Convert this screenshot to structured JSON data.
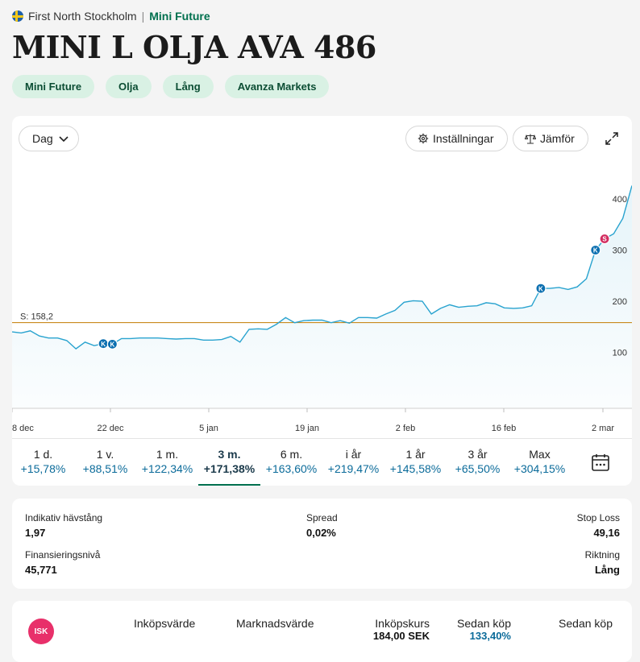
{
  "breadcrumb": {
    "market": "First North Stockholm",
    "separator": "|",
    "type": "Mini Future"
  },
  "title": "MINI L OLJA AVA 486",
  "tags": [
    "Mini Future",
    "Olja",
    "Lång",
    "Avanza Markets"
  ],
  "toolbar": {
    "range_select": "Dag",
    "settings": "Inställningar",
    "compare": "Jämför"
  },
  "icons": {
    "range": "chevron-down-icon",
    "settings": "gear-icon",
    "compare": "scale-icon",
    "expand": "expand-icon",
    "calendar": "calendar-icon",
    "isk": "isk-badge"
  },
  "colors": {
    "accent": "#00704e",
    "line": "#29a3cf",
    "stop_line": "#c98a1e",
    "marker_buy": "#0b6fb0",
    "marker_sell": "#d22c5f",
    "positive": "#0b6b9a"
  },
  "chart_data": {
    "type": "line",
    "x_ticks": [
      "8 dec",
      "22 dec",
      "5 jan",
      "19 jan",
      "2 feb",
      "16 feb",
      "2 mar"
    ],
    "y_ticks": [
      100,
      200,
      300,
      400
    ],
    "stop_label": "S: 158,2",
    "stop_value": 158.2,
    "markers": [
      {
        "label": "K",
        "kind": "buy",
        "x_index": 10
      },
      {
        "label": "K",
        "kind": "buy",
        "x_index": 11
      },
      {
        "label": "K",
        "kind": "buy",
        "x_index": 58
      },
      {
        "label": "K",
        "kind": "buy",
        "x_index": 64
      },
      {
        "label": "S",
        "kind": "sell",
        "x_index": 65
      }
    ],
    "series": [
      {
        "values": [
          140,
          138,
          142,
          132,
          128,
          128,
          123,
          107,
          120,
          113,
          117,
          116,
          127,
          127,
          128,
          128,
          128,
          127,
          126,
          127,
          127,
          124,
          124,
          125,
          131,
          120,
          145,
          146,
          145,
          155,
          168,
          158,
          162,
          163,
          163,
          158,
          162,
          157,
          168,
          168,
          167,
          175,
          182,
          198,
          201,
          200,
          175,
          186,
          193,
          188,
          190,
          191,
          197,
          195,
          187,
          186,
          187,
          191,
          225,
          225,
          227,
          223,
          228,
          244,
          300,
          322,
          332,
          362,
          426
        ]
      }
    ]
  },
  "periods": [
    {
      "label": "1 d.",
      "value": "+15,78%"
    },
    {
      "label": "1 v.",
      "value": "+88,51%"
    },
    {
      "label": "1 m.",
      "value": "+122,34%"
    },
    {
      "label": "3 m.",
      "value": "+171,38%",
      "active": true
    },
    {
      "label": "6 m.",
      "value": "+163,60%"
    },
    {
      "label": "i år",
      "value": "+219,47%"
    },
    {
      "label": "1 år",
      "value": "+145,58%"
    },
    {
      "label": "3 år",
      "value": "+65,50%"
    },
    {
      "label": "Max",
      "value": "+304,15%"
    }
  ],
  "info": {
    "leverage_label": "Indikativ hävstång",
    "leverage_value": "1,97",
    "spread_label": "Spread",
    "spread_value": "0,02%",
    "stoploss_label": "Stop Loss",
    "stoploss_value": "49,16",
    "financing_label": "Finansieringsnivå",
    "financing_value": "45,771",
    "direction_label": "Riktning",
    "direction_value": "Lång"
  },
  "holdings": {
    "badge": "ISK",
    "purchase_value_label": "Inköpsvärde",
    "market_value_label": "Marknadsvärde",
    "purchase_price_label": "Inköpskurs",
    "purchase_price_value": "184,00 SEK",
    "since_buy_pct_label": "Sedan köp",
    "since_buy_pct_value": "133,40%",
    "since_buy_label": "Sedan köp"
  }
}
